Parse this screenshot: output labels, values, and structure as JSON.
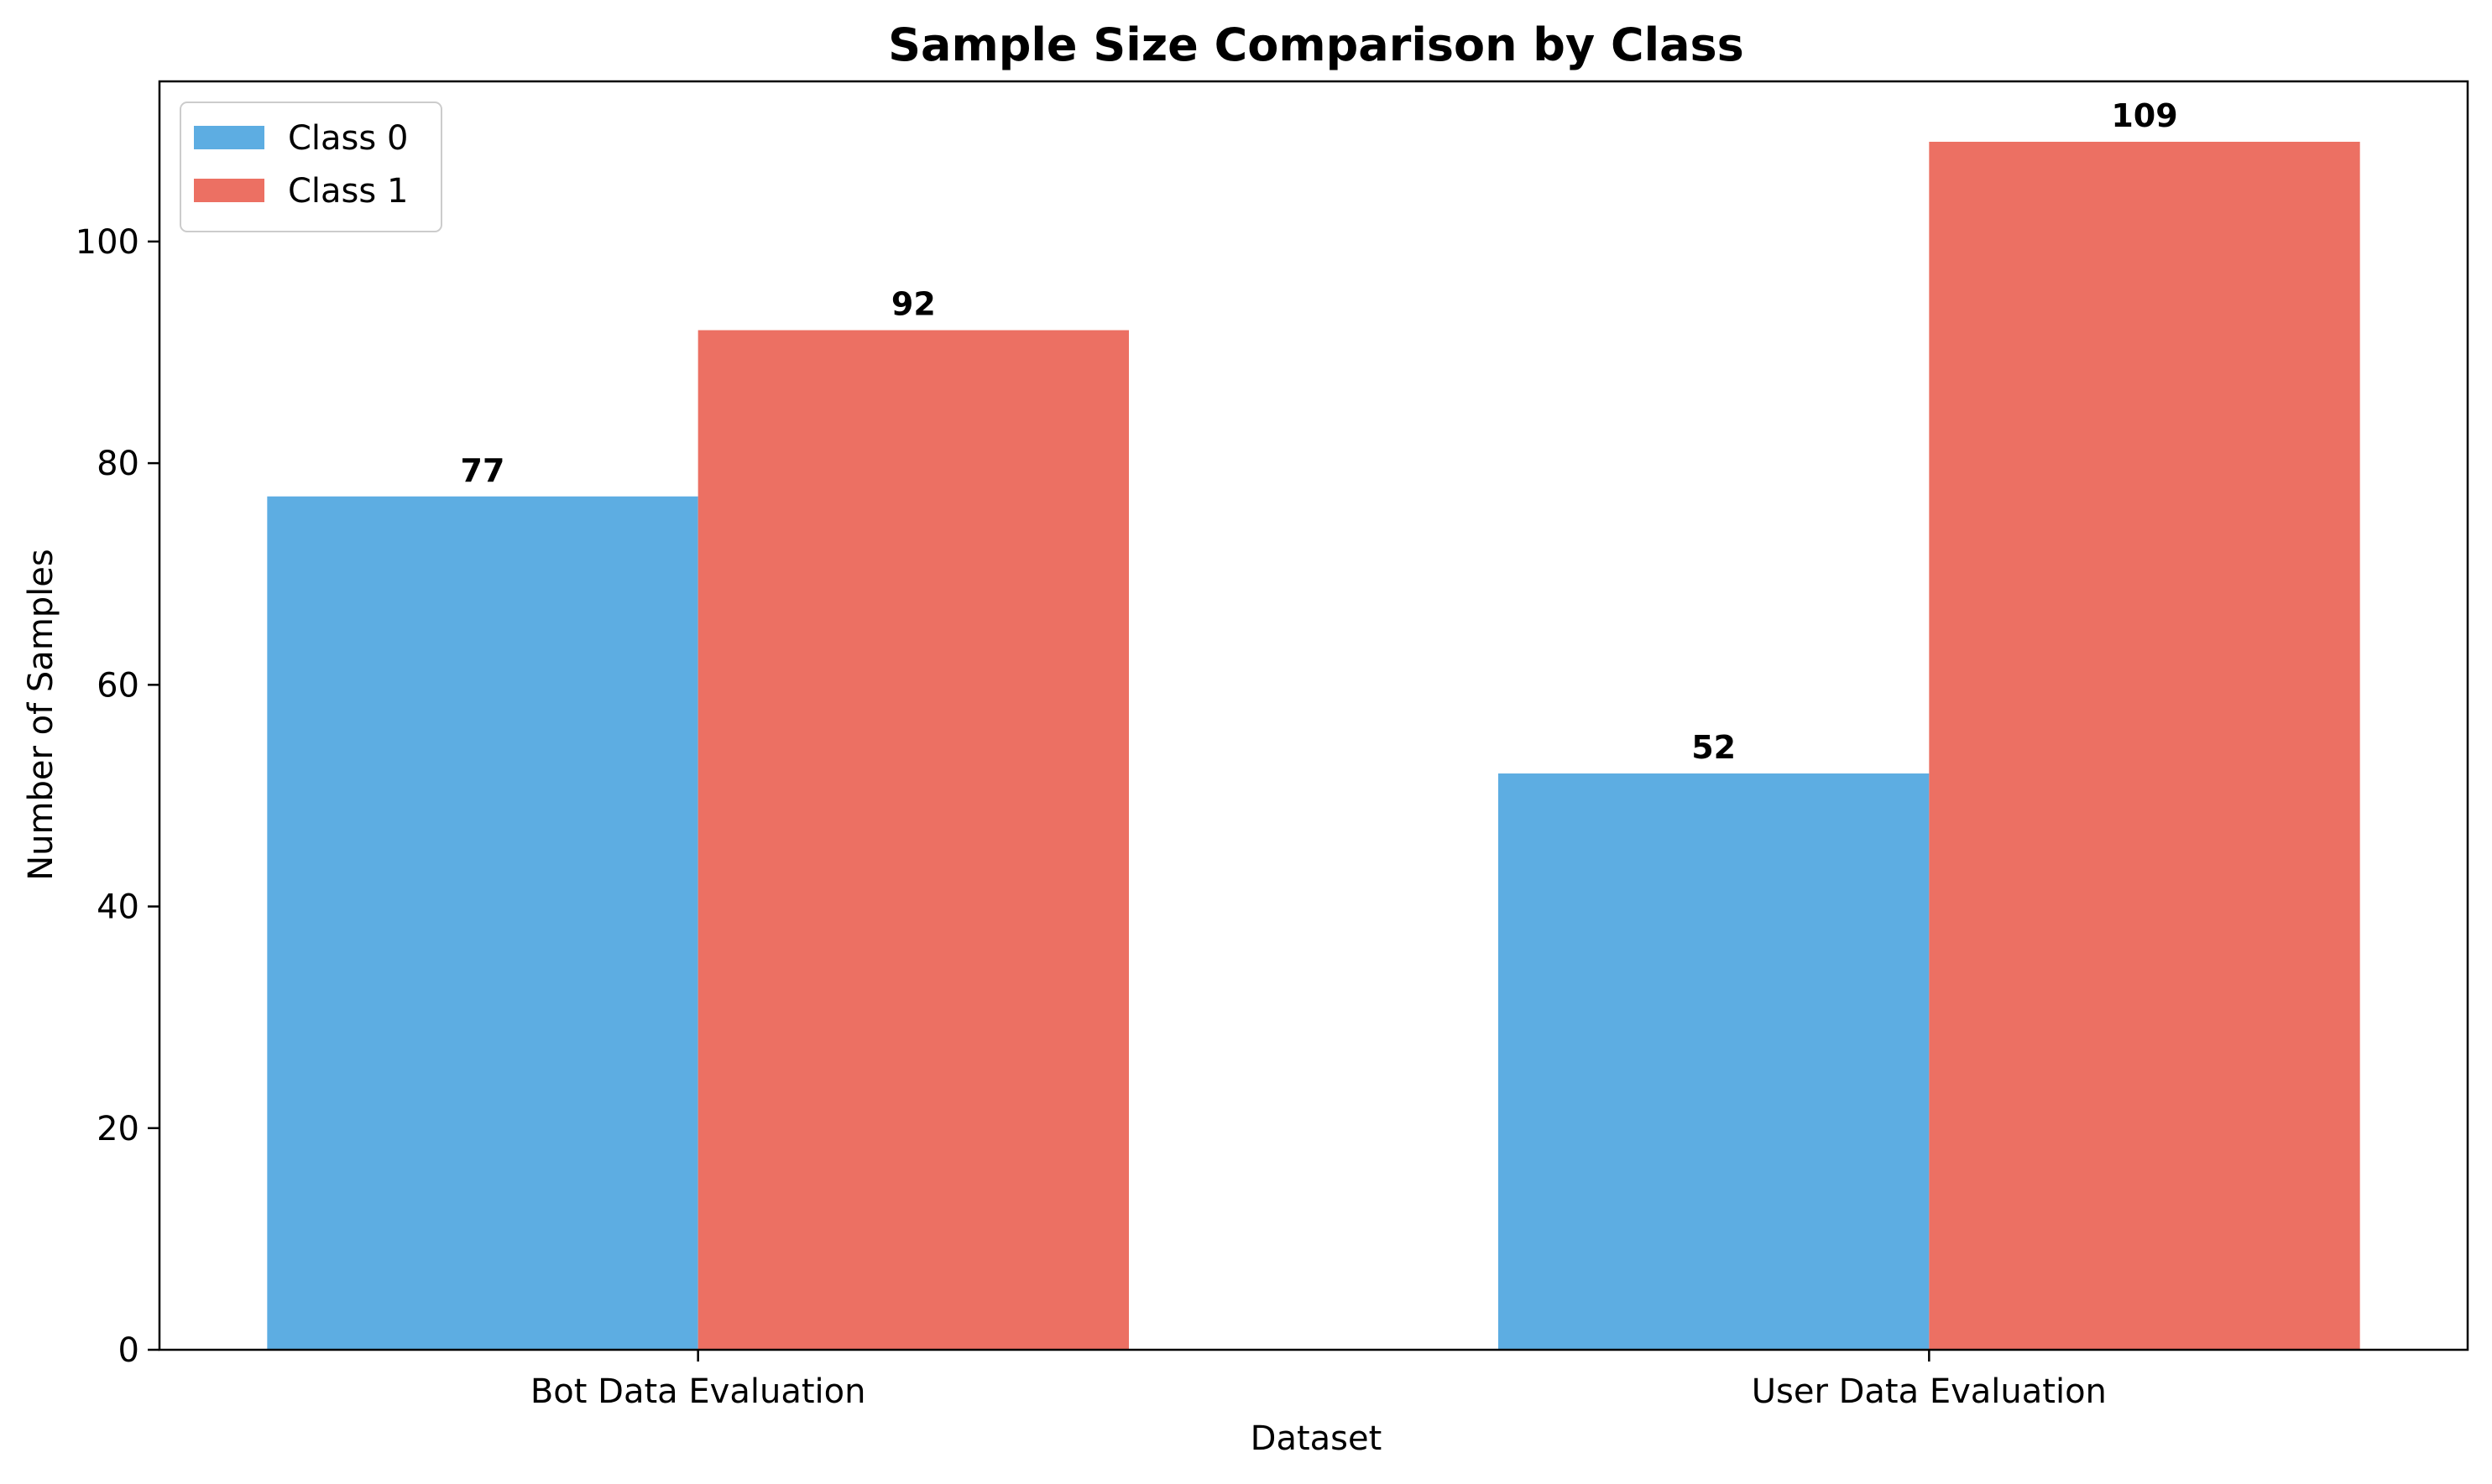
{
  "chart_data": {
    "type": "bar",
    "title": "Sample Size Comparison by Class",
    "xlabel": "Dataset",
    "ylabel": "Number of Samples",
    "categories": [
      "Bot Data Evaluation",
      "User Data Evaluation"
    ],
    "series": [
      {
        "name": "Class 0",
        "values": [
          77,
          52
        ],
        "color": "#5DADE2"
      },
      {
        "name": "Class 1",
        "values": [
          92,
          109
        ],
        "color": "#EC7063"
      }
    ],
    "ylim": [
      0,
      114.45
    ],
    "yticks": [
      0,
      20,
      40,
      60,
      80,
      100
    ],
    "grid": false,
    "legend": "top-left"
  }
}
